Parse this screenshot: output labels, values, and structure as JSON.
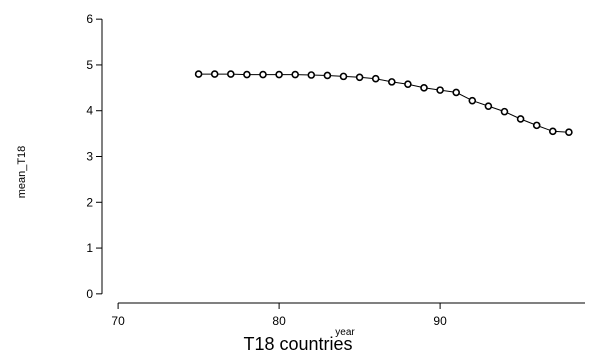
{
  "chart_data": {
    "type": "line",
    "title": "T18 countries",
    "xlabel": "year",
    "ylabel": "mean_T18",
    "xlim": [
      69,
      99
    ],
    "ylim": [
      -0.2,
      6.2
    ],
    "xticks": [
      70,
      80,
      90
    ],
    "yticks": [
      0,
      1,
      2,
      3,
      4,
      5,
      6
    ],
    "grid": false,
    "legend": "none",
    "series": [
      {
        "x": [
          75,
          76,
          77,
          78,
          79,
          80,
          81,
          82,
          83,
          84,
          85,
          86,
          87,
          88,
          89,
          90,
          91,
          92,
          93,
          94,
          95,
          96,
          97,
          98
        ],
        "values": [
          4.8,
          4.8,
          4.8,
          4.79,
          4.79,
          4.79,
          4.79,
          4.78,
          4.77,
          4.75,
          4.73,
          4.7,
          4.63,
          4.58,
          4.5,
          4.45,
          4.4,
          4.22,
          4.1,
          3.98,
          3.82,
          3.68,
          3.55,
          3.53
        ]
      }
    ]
  }
}
